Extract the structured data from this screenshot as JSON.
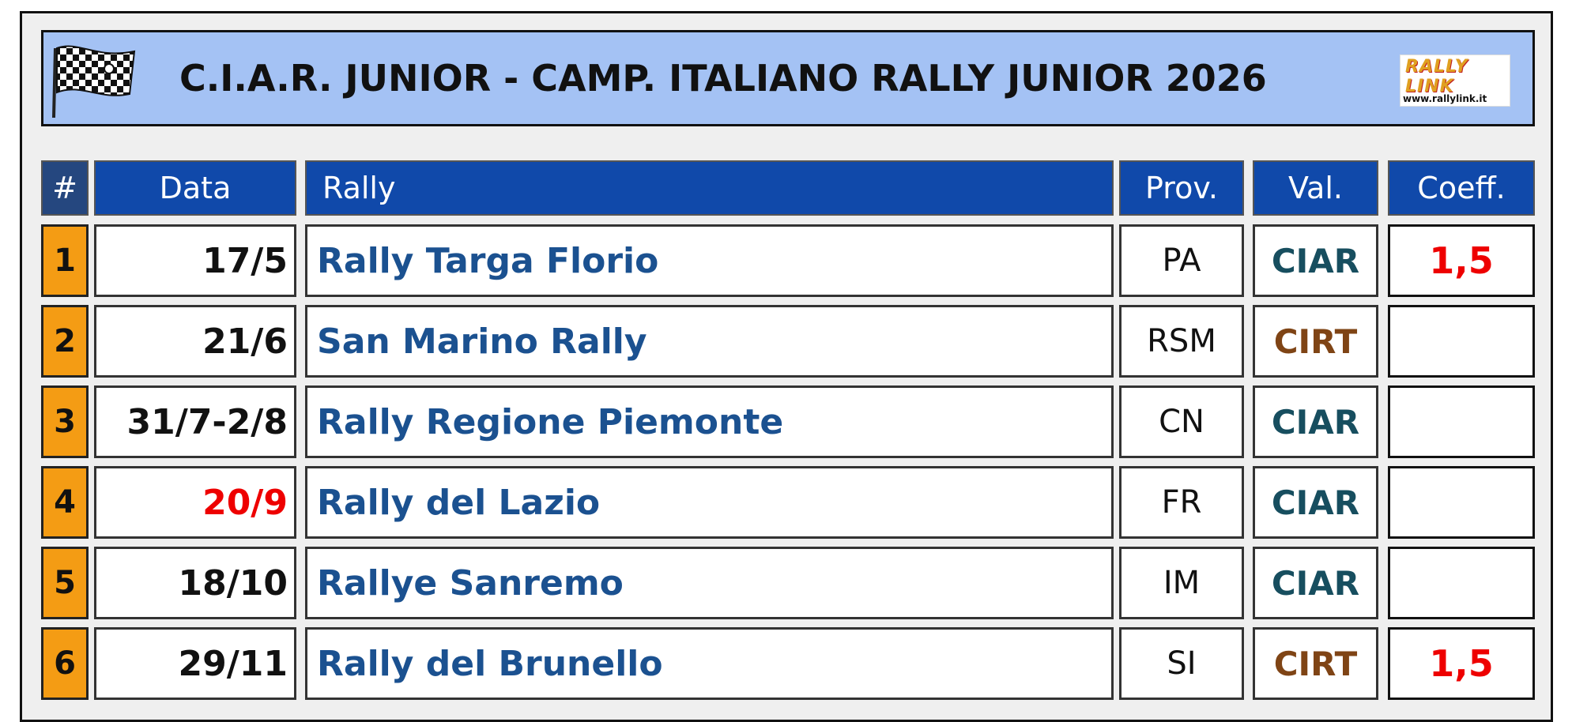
{
  "header": {
    "title": "C.I.A.R. JUNIOR - CAMP. ITALIANO RALLY JUNIOR 2026",
    "logo_text": "RALLY LINK",
    "logo_url": "www.rallylink.it"
  },
  "table": {
    "columns": [
      "#",
      "Data",
      "Rally",
      "Prov.",
      "Val.",
      "Coeff."
    ],
    "rows": [
      {
        "num": "1",
        "date": "17/5",
        "rally": "Rally Targa Florio",
        "prov": "PA",
        "val": "CIAR",
        "coeff": "1,5"
      },
      {
        "num": "2",
        "date": "21/6",
        "rally": "San Marino Rally",
        "prov": "RSM",
        "val": "CIRT",
        "coeff": ""
      },
      {
        "num": "3",
        "date": "31/7-2/8",
        "rally": "Rally Regione Piemonte",
        "prov": "CN",
        "val": "CIAR",
        "coeff": ""
      },
      {
        "num": "4",
        "date": "20/9",
        "rally": "Rally del Lazio",
        "prov": "FR",
        "val": "CIAR",
        "coeff": ""
      },
      {
        "num": "5",
        "date": "18/10",
        "rally": "Rallye Sanremo",
        "prov": "IM",
        "val": "CIAR",
        "coeff": ""
      },
      {
        "num": "6",
        "date": "29/11",
        "rally": "Rally del Brunello",
        "prov": "SI",
        "val": "CIRT",
        "coeff": "1,5"
      }
    ]
  },
  "colors": {
    "header_blue": "#1049aa",
    "title_bg": "#a4c2f4",
    "number_orange": "#f49c14",
    "rally_name_blue": "#1b5190",
    "ciar_teal": "#174e5f",
    "cirt_brown": "#7f4415",
    "highlight_red": "#ee0000"
  },
  "icons": {
    "flag": "checkered-flag-icon",
    "logo": "rallylink-logo"
  }
}
